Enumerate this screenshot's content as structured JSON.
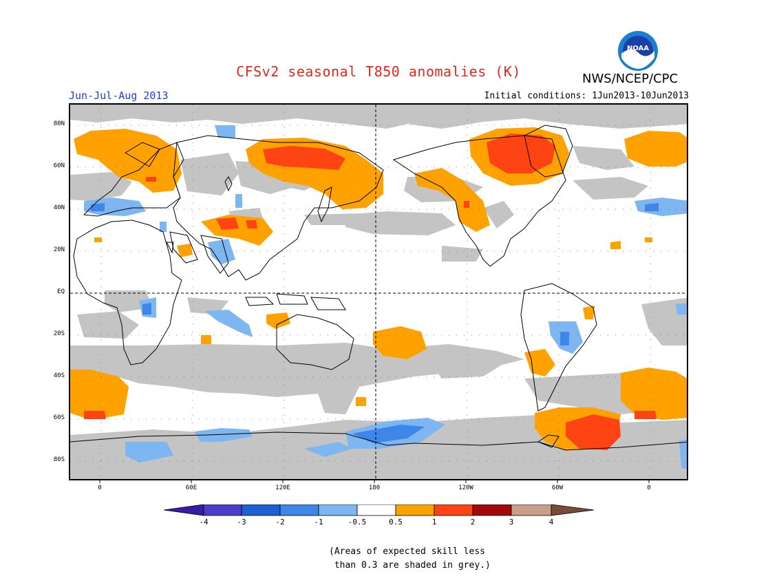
{
  "title": "CFSv2 seasonal T850 anomalies (K)",
  "organization": "NWS/NCEP/CPC",
  "logo_text": "NOAA",
  "season": "Jun-Jul-Aug 2013",
  "initial_conditions": "Initial conditions: 1Jun2013-10Jun2013",
  "lat_labels": [
    "80N",
    "60N",
    "40N",
    "20N",
    "EQ",
    "20S",
    "40S",
    "60S",
    "80S"
  ],
  "lon_labels": [
    "0",
    "60E",
    "120E",
    "180",
    "120W",
    "60W",
    "0"
  ],
  "colorbar": {
    "labels": [
      "-4",
      "-3",
      "-2",
      "-1",
      "-0.5",
      "0.5",
      "1",
      "2",
      "3",
      "4"
    ],
    "colors": [
      "#3a1aa8",
      "#4a3fcc",
      "#1e5fd6",
      "#3e86e8",
      "#7eb6f2",
      "#ffffff",
      "#ffa200",
      "#ff4414",
      "#a00a0a",
      "#c8a08a",
      "#7a4a3a"
    ]
  },
  "footnote": "(Areas of expected skill less\n than 0.3 are shaded in grey.)",
  "colors": {
    "grey": "#c4c4c4",
    "title": "#e0281e",
    "season": "#1f3fd6"
  }
}
